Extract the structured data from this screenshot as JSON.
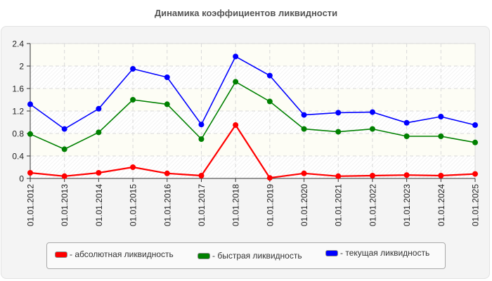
{
  "title": "Динамика коэффициентов ликвидности",
  "colors": {
    "absolute": "#ff0000",
    "quick": "#008000",
    "current": "#0000ff",
    "panel_bg": "#f4f4f4",
    "band_light": "#fdfdf5",
    "grid": "#d9d9d9"
  },
  "legend": {
    "items": [
      {
        "label": "- абсолютная ликвидность",
        "color": "#ff0000"
      },
      {
        "label": "- быстрая ликвидность",
        "color": "#008000"
      },
      {
        "label": "- текущая ликвидность",
        "color": "#0000ff"
      }
    ]
  },
  "chart_data": {
    "type": "line",
    "title": "Динамика коэффициентов ликвидности",
    "xlabel": "",
    "ylabel": "",
    "ylim": [
      0,
      2.4
    ],
    "yticks": [
      "0",
      "0.4",
      "0.8",
      "1.2",
      "1.6",
      "2",
      "2.4"
    ],
    "grid": true,
    "legend_position": "bottom",
    "categories": [
      "01.01.2012",
      "01.01.2013",
      "01.01.2014",
      "01.01.2015",
      "01.01.2016",
      "01.01.2017",
      "01.01.2018",
      "01.01.2019",
      "01.01.2020",
      "01.01.2021",
      "01.01.2022",
      "01.01.2023",
      "01.01.2024",
      "01.01.2025"
    ],
    "series": [
      {
        "name": "абсолютная ликвидность",
        "color": "#ff0000",
        "values": [
          0.1,
          0.04,
          0.1,
          0.2,
          0.09,
          0.05,
          0.95,
          0.01,
          0.09,
          0.04,
          0.05,
          0.06,
          0.05,
          0.08
        ]
      },
      {
        "name": "быстрая ликвидность",
        "color": "#008000",
        "values": [
          0.79,
          0.52,
          0.82,
          1.4,
          1.32,
          0.7,
          1.72,
          1.37,
          0.88,
          0.83,
          0.88,
          0.75,
          0.75,
          0.64
        ]
      },
      {
        "name": "текущая ликвидность",
        "color": "#0000ff",
        "values": [
          1.32,
          0.88,
          1.24,
          1.95,
          1.8,
          0.96,
          2.17,
          1.83,
          1.13,
          1.17,
          1.18,
          0.99,
          1.1,
          0.95
        ]
      }
    ]
  }
}
